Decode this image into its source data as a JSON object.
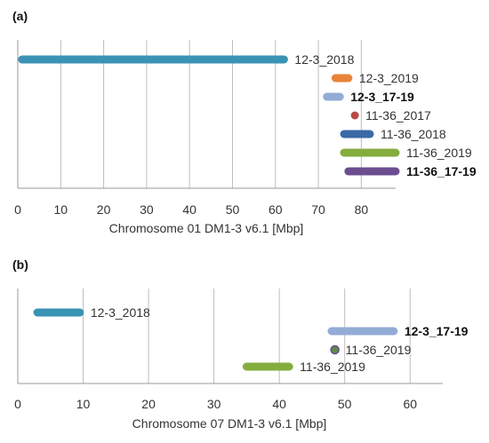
{
  "chart_data": [
    {
      "type": "bar",
      "panel_label": "(a)",
      "xlabel": "Chromosome 01 DM1-3 v6.1 [Mbp]",
      "xlim": [
        0,
        88
      ],
      "xticks": [
        0,
        10,
        20,
        30,
        40,
        50,
        60,
        70,
        80
      ],
      "grid": true,
      "series": [
        {
          "name": "12-3_2018",
          "start": 1,
          "end": 62,
          "color": "#3a93b4",
          "bold": false
        },
        {
          "name": "12-3_2019",
          "start": 74,
          "end": 77,
          "color": "#e8843a",
          "bold": false
        },
        {
          "name": "12-3_17-19",
          "start": 72,
          "end": 75,
          "color": "#93acd6",
          "bold": true
        },
        {
          "name": "11-36_2017",
          "start": 78.5,
          "end": 78.5,
          "color": "#b84a48",
          "bold": false
        },
        {
          "name": "11-36_2018",
          "start": 76,
          "end": 82,
          "color": "#3a6aa6",
          "bold": false
        },
        {
          "name": "11-36_2019",
          "start": 76,
          "end": 88,
          "color": "#84ad3f",
          "bold": false
        },
        {
          "name": "11-36_17-19",
          "start": 77,
          "end": 88,
          "color": "#6b4d90",
          "bold": true
        }
      ]
    },
    {
      "type": "bar",
      "panel_label": "(b)",
      "xlabel": "Chromosome 07 DM1-3 v6.1 [Mbp]",
      "xlim": [
        0,
        65
      ],
      "xticks": [
        0,
        10,
        20,
        30,
        40,
        50,
        60
      ],
      "grid": true,
      "series": [
        {
          "name": "12-3_2018",
          "start": 3,
          "end": 9.5,
          "color": "#3a93b4",
          "bold": false
        },
        {
          "name": "12-3_17-19",
          "start": 48,
          "end": 57.5,
          "color": "#93acd6",
          "bold": true
        },
        {
          "name": "11-36_2019",
          "start": 48.5,
          "end": 48.5,
          "color": "#5e8a4a",
          "bold": false,
          "outline": "#6b4d90"
        },
        {
          "name": "11-36_2019",
          "start": 35,
          "end": 41.5,
          "color": "#84ad3f",
          "bold": false
        }
      ]
    }
  ]
}
